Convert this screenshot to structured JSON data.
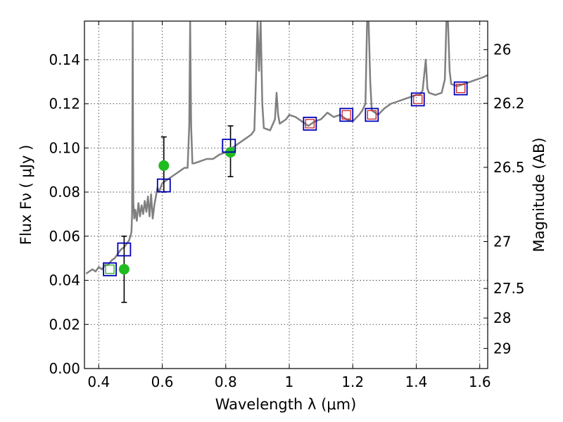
{
  "chart_data": {
    "type": "scatter",
    "xlabel": "Wavelength  λ (μm)",
    "ylabel": "Flux  Fν  ( μJy )",
    "ylabel_right": "Magnitude (AB)",
    "xlim": [
      0.355,
      1.625
    ],
    "ylim": [
      0.0,
      0.1575
    ],
    "x_ticks": [
      0.4,
      0.6,
      0.8,
      1.0,
      1.2,
      1.4,
      1.6
    ],
    "x_tick_labels": [
      "0.4",
      "0.6",
      "0.8",
      "1",
      "1.2",
      "1.4",
      "1.6"
    ],
    "y_ticks": [
      0.0,
      0.02,
      0.04,
      0.06,
      0.08,
      0.1,
      0.12,
      0.14
    ],
    "y_tick_labels": [
      "0.00",
      "0.02",
      "0.04",
      "0.06",
      "0.08",
      "0.10",
      "0.12",
      "0.14"
    ],
    "right_ticks": [
      {
        "mag": 26,
        "label": "26"
      },
      {
        "mag": 26.2,
        "label": "26.2"
      },
      {
        "mag": 26.5,
        "label": "26.5"
      },
      {
        "mag": 27,
        "label": "27"
      },
      {
        "mag": 27.5,
        "label": "27.5"
      },
      {
        "mag": 28,
        "label": "28"
      },
      {
        "mag": 29,
        "label": "29"
      }
    ],
    "grid": true,
    "series": [
      {
        "kind": "line",
        "color": "#808080",
        "points": [
          [
            0.36,
            0.043
          ],
          [
            0.37,
            0.044
          ],
          [
            0.38,
            0.045
          ],
          [
            0.39,
            0.044
          ],
          [
            0.4,
            0.046
          ],
          [
            0.41,
            0.045
          ],
          [
            0.42,
            0.047
          ],
          [
            0.43,
            0.047
          ],
          [
            0.44,
            0.049
          ],
          [
            0.45,
            0.05
          ],
          [
            0.46,
            0.052
          ],
          [
            0.47,
            0.054
          ],
          [
            0.48,
            0.055
          ],
          [
            0.49,
            0.057
          ],
          [
            0.495,
            0.058
          ],
          [
            0.5,
            0.06
          ],
          [
            0.503,
            0.062
          ],
          [
            0.505,
            0.07
          ],
          [
            0.506,
            0.11
          ],
          [
            0.507,
            0.157
          ],
          [
            0.508,
            0.11
          ],
          [
            0.509,
            0.075
          ],
          [
            0.512,
            0.068
          ],
          [
            0.515,
            0.072
          ],
          [
            0.52,
            0.067
          ],
          [
            0.525,
            0.075
          ],
          [
            0.53,
            0.069
          ],
          [
            0.535,
            0.074
          ],
          [
            0.54,
            0.07
          ],
          [
            0.545,
            0.076
          ],
          [
            0.55,
            0.071
          ],
          [
            0.555,
            0.078
          ],
          [
            0.56,
            0.069
          ],
          [
            0.565,
            0.079
          ],
          [
            0.57,
            0.068
          ],
          [
            0.575,
            0.074
          ],
          [
            0.58,
            0.078
          ],
          [
            0.585,
            0.082
          ],
          [
            0.59,
            0.08
          ],
          [
            0.6,
            0.084
          ],
          [
            0.61,
            0.085
          ],
          [
            0.62,
            0.086
          ],
          [
            0.63,
            0.087
          ],
          [
            0.64,
            0.088
          ],
          [
            0.65,
            0.089
          ],
          [
            0.66,
            0.09
          ],
          [
            0.67,
            0.091
          ],
          [
            0.68,
            0.091
          ],
          [
            0.685,
            0.11
          ],
          [
            0.688,
            0.157
          ],
          [
            0.691,
            0.11
          ],
          [
            0.695,
            0.093
          ],
          [
            0.7,
            0.093
          ],
          [
            0.72,
            0.094
          ],
          [
            0.74,
            0.095
          ],
          [
            0.76,
            0.095
          ],
          [
            0.78,
            0.097
          ],
          [
            0.8,
            0.098
          ],
          [
            0.82,
            0.1
          ],
          [
            0.84,
            0.102
          ],
          [
            0.86,
            0.104
          ],
          [
            0.88,
            0.106
          ],
          [
            0.89,
            0.108
          ],
          [
            0.895,
            0.13
          ],
          [
            0.9,
            0.157
          ],
          [
            0.905,
            0.135
          ],
          [
            0.91,
            0.157
          ],
          [
            0.915,
            0.12
          ],
          [
            0.92,
            0.109
          ],
          [
            0.94,
            0.108
          ],
          [
            0.955,
            0.113
          ],
          [
            0.96,
            0.125
          ],
          [
            0.965,
            0.115
          ],
          [
            0.97,
            0.111
          ],
          [
            0.99,
            0.113
          ],
          [
            1.0,
            0.115
          ],
          [
            1.02,
            0.114
          ],
          [
            1.04,
            0.112
          ],
          [
            1.06,
            0.11
          ],
          [
            1.08,
            0.112
          ],
          [
            1.1,
            0.113
          ],
          [
            1.12,
            0.116
          ],
          [
            1.14,
            0.114
          ],
          [
            1.16,
            0.115
          ],
          [
            1.18,
            0.113
          ],
          [
            1.2,
            0.112
          ],
          [
            1.22,
            0.115
          ],
          [
            1.23,
            0.117
          ],
          [
            1.24,
            0.12
          ],
          [
            1.245,
            0.157
          ],
          [
            1.25,
            0.157
          ],
          [
            1.255,
            0.13
          ],
          [
            1.26,
            0.117
          ],
          [
            1.28,
            0.115
          ],
          [
            1.3,
            0.118
          ],
          [
            1.32,
            0.12
          ],
          [
            1.34,
            0.121
          ],
          [
            1.36,
            0.122
          ],
          [
            1.38,
            0.123
          ],
          [
            1.4,
            0.124
          ],
          [
            1.41,
            0.124
          ],
          [
            1.42,
            0.126
          ],
          [
            1.43,
            0.14
          ],
          [
            1.435,
            0.127
          ],
          [
            1.44,
            0.125
          ],
          [
            1.46,
            0.124
          ],
          [
            1.48,
            0.125
          ],
          [
            1.49,
            0.131
          ],
          [
            1.495,
            0.157
          ],
          [
            1.5,
            0.157
          ],
          [
            1.505,
            0.135
          ],
          [
            1.51,
            0.129
          ],
          [
            1.53,
            0.128
          ],
          [
            1.55,
            0.129
          ],
          [
            1.57,
            0.13
          ],
          [
            1.59,
            0.131
          ],
          [
            1.61,
            0.132
          ],
          [
            1.625,
            0.133
          ]
        ]
      },
      {
        "kind": "squares",
        "marker_color": "#0000bb",
        "points": [
          {
            "x": 0.435,
            "y": 0.045,
            "inner": "#22aa22"
          },
          {
            "x": 0.48,
            "y": 0.054,
            "inner": null
          },
          {
            "x": 0.605,
            "y": 0.083,
            "inner": null
          },
          {
            "x": 0.81,
            "y": 0.101,
            "inner": null
          },
          {
            "x": 1.065,
            "y": 0.111,
            "inner": "#cc2222"
          },
          {
            "x": 1.18,
            "y": 0.115,
            "inner": "#cc2222"
          },
          {
            "x": 1.26,
            "y": 0.115,
            "inner": "#cc2222"
          },
          {
            "x": 1.405,
            "y": 0.122,
            "inner": "#cc2222"
          },
          {
            "x": 1.54,
            "y": 0.127,
            "inner": "#cc2222"
          }
        ]
      },
      {
        "kind": "points_with_errorbars",
        "color": "#22bb22",
        "points": [
          {
            "x": 0.48,
            "y": 0.045,
            "lo": 0.03,
            "hi": 0.06
          },
          {
            "x": 0.605,
            "y": 0.092,
            "lo": 0.08,
            "hi": 0.105
          },
          {
            "x": 0.815,
            "y": 0.098,
            "lo": 0.087,
            "hi": 0.11
          }
        ]
      }
    ]
  }
}
